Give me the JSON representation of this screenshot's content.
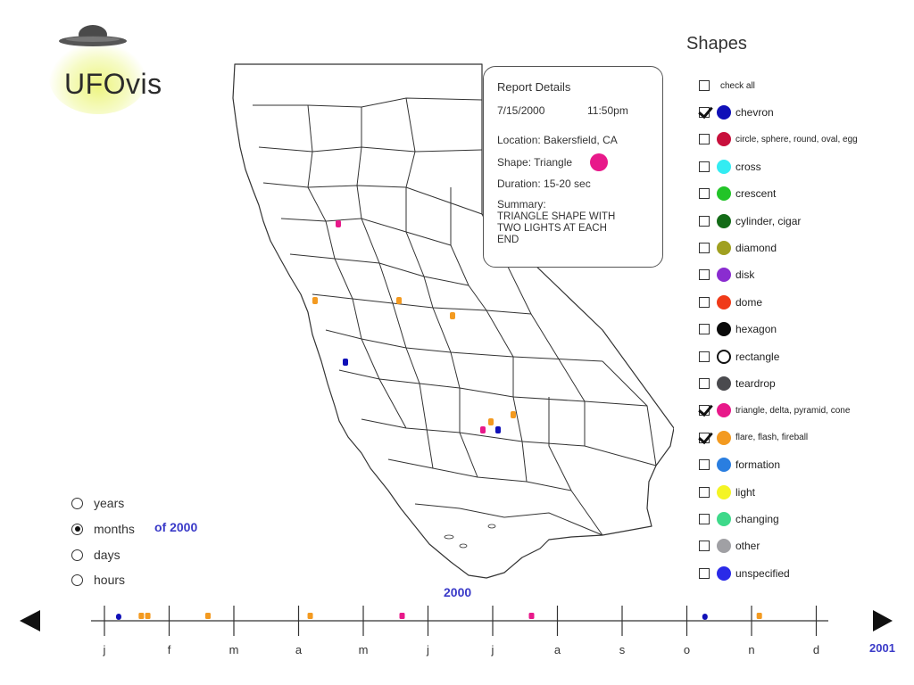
{
  "app": {
    "logo_text": "UFOvis"
  },
  "report": {
    "title": "Report Details",
    "date": "7/15/2000",
    "time": "11:50pm",
    "location": "Location: Bakersfield, CA",
    "shape": "Shape: Triangle",
    "shape_color": "#e8198a",
    "duration": "Duration: 15-20 sec",
    "summary_label": "Summary:",
    "summary_lines": [
      "TRIANGLE SHAPE WITH",
      "TWO LIGHTS AT EACH",
      "END"
    ]
  },
  "shapes": {
    "title": "Shapes",
    "check_all": {
      "label": "check all",
      "checked": false
    },
    "items": [
      {
        "label": "chevron",
        "color": "#1010b8",
        "checked": true
      },
      {
        "label": "circle, sphere, round, oval, egg",
        "color": "#c8103c",
        "checked": false
      },
      {
        "label": "cross",
        "color": "#33ecf2",
        "checked": false
      },
      {
        "label": "crescent",
        "color": "#22c428",
        "checked": false
      },
      {
        "label": "cylinder, cigar",
        "color": "#136b17",
        "checked": false
      },
      {
        "label": "diamond",
        "color": "#a0a020",
        "checked": false
      },
      {
        "label": "disk",
        "color": "#8a2cd0",
        "checked": false
      },
      {
        "label": "dome",
        "color": "#f03a18",
        "checked": false
      },
      {
        "label": "hexagon",
        "color": "#0b0b0b",
        "checked": false
      },
      {
        "label": "rectangle",
        "color": "#ffffff",
        "checked": false
      },
      {
        "label": "teardrop",
        "color": "#4a4a4e",
        "checked": false
      },
      {
        "label": "triangle, delta, pyramid, cone",
        "color": "#e8198a",
        "checked": true
      },
      {
        "label": "flare, flash, fireball",
        "color": "#f39a20",
        "checked": true
      },
      {
        "label": "formation",
        "color": "#2a7ee0",
        "checked": false
      },
      {
        "label": "light",
        "color": "#f4f424",
        "checked": false
      },
      {
        "label": "changing",
        "color": "#3ed98a",
        "checked": false
      },
      {
        "label": "other",
        "color": "#a0a0a4",
        "checked": false
      },
      {
        "label": "unspecified",
        "color": "#2a2ae8",
        "checked": false
      }
    ]
  },
  "granularity": {
    "options": [
      {
        "label": "years",
        "selected": false
      },
      {
        "label": "months",
        "selected": true
      },
      {
        "label": "days",
        "selected": false
      },
      {
        "label": "hours",
        "selected": false
      }
    ],
    "of_label": "of 2000"
  },
  "timeline": {
    "year": "2000",
    "next_year": "2001",
    "months": [
      "j",
      "f",
      "m",
      "a",
      "m",
      "j",
      "j",
      "a",
      "s",
      "o",
      "n",
      "d"
    ],
    "events": [
      {
        "month": 0.22,
        "shape": "chevron"
      },
      {
        "month": 0.57,
        "shape": "flare, flash, fireball"
      },
      {
        "month": 0.67,
        "shape": "flare, flash, fireball"
      },
      {
        "month": 1.6,
        "shape": "flare, flash, fireball"
      },
      {
        "month": 3.18,
        "shape": "flare, flash, fireball"
      },
      {
        "month": 4.6,
        "shape": "triangle, delta, pyramid, cone"
      },
      {
        "month": 6.6,
        "shape": "triangle, delta, pyramid, cone"
      },
      {
        "month": 9.28,
        "shape": "chevron"
      },
      {
        "month": 10.12,
        "shape": "flare, flash, fireball"
      }
    ]
  },
  "map_sightings": [
    {
      "place": "north",
      "shape": "triangle, delta, pyramid, cone"
    },
    {
      "place": "bay-area",
      "shape": "flare, flash, fireball"
    },
    {
      "place": "central-valley",
      "shape": "flare, flash, fireball"
    },
    {
      "place": "sierra",
      "shape": "flare, flash, fireball"
    },
    {
      "place": "coast",
      "shape": "chevron"
    },
    {
      "place": "bakersfield",
      "shape": "triangle, delta, pyramid, cone"
    },
    {
      "place": "bakersfield",
      "shape": "flare, flash, fireball"
    },
    {
      "place": "bakersfield",
      "shape": "chevron"
    },
    {
      "place": "tehachapi",
      "shape": "flare, flash, fireball"
    }
  ]
}
